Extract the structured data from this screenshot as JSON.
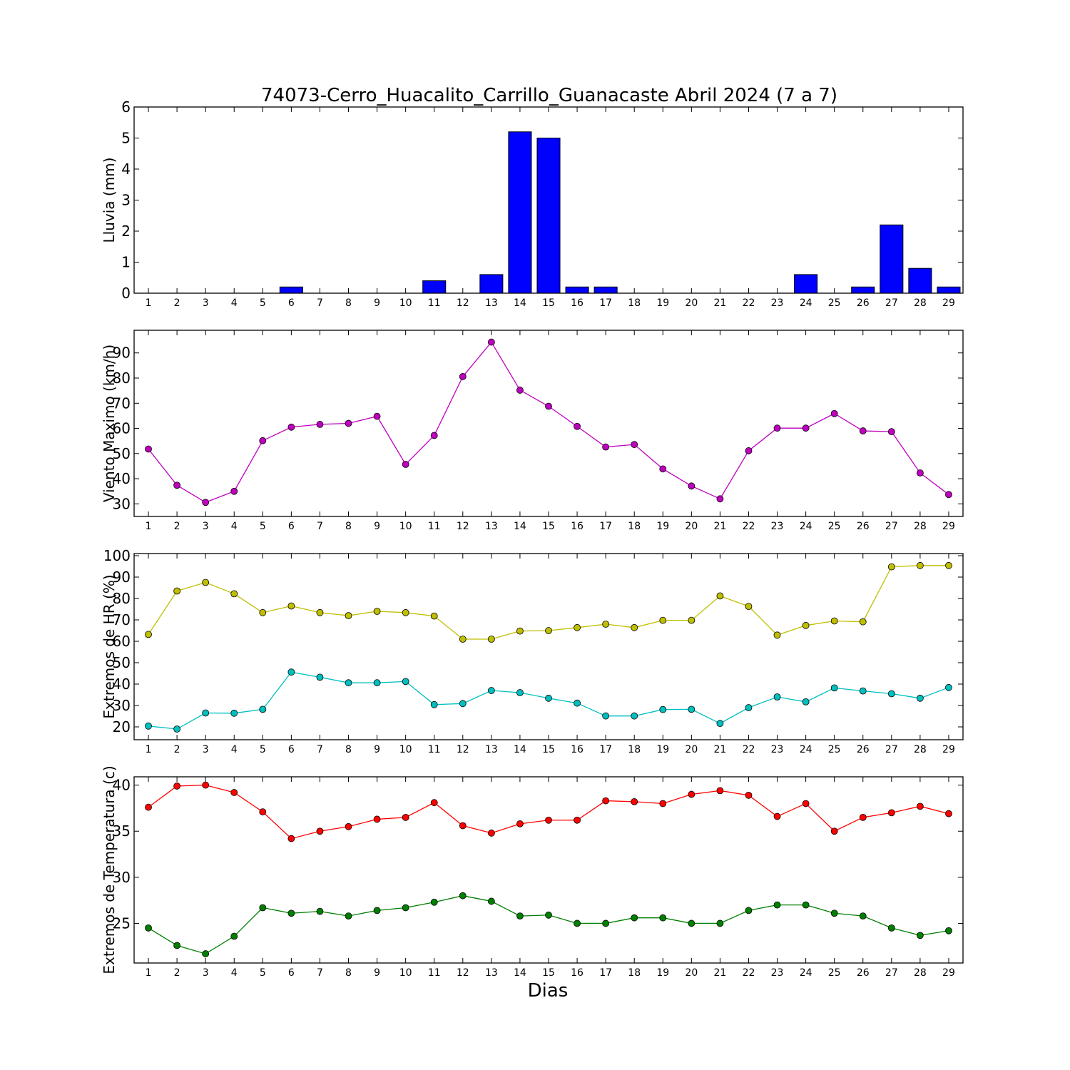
{
  "figure": {
    "title": "74073-Cerro_Huacalito_Carrillo_Guanacaste Abril 2024  (7 a 7)",
    "xlabel": "Dias"
  },
  "chart_data": [
    {
      "type": "bar",
      "ylabel": "Lluvia (mm)",
      "categories": [
        1,
        2,
        3,
        4,
        5,
        6,
        7,
        8,
        9,
        10,
        11,
        12,
        13,
        14,
        15,
        16,
        17,
        18,
        19,
        20,
        21,
        22,
        23,
        24,
        25,
        26,
        27,
        28,
        29
      ],
      "xlim": [
        0.5,
        29.5
      ],
      "ylim": [
        0,
        6
      ],
      "yticks": [
        0,
        1,
        2,
        3,
        4,
        5,
        6
      ],
      "series": [
        {
          "color": "#0000ff",
          "values": [
            0,
            0,
            0,
            0,
            0,
            0.2,
            0,
            0,
            0,
            0,
            0.4,
            0,
            0.6,
            5.2,
            5.0,
            0.2,
            0.2,
            0,
            0,
            0,
            0,
            0,
            0,
            0.6,
            0,
            0.2,
            2.2,
            0.8,
            0.2
          ]
        }
      ]
    },
    {
      "type": "line",
      "ylabel": "Viento Maximo (km/h)",
      "categories": [
        1,
        2,
        3,
        4,
        5,
        6,
        7,
        8,
        9,
        10,
        11,
        12,
        13,
        14,
        15,
        16,
        17,
        18,
        19,
        20,
        21,
        22,
        23,
        24,
        25,
        26,
        27,
        28,
        29
      ],
      "xlim": [
        0.5,
        29.5
      ],
      "ylim": [
        25,
        99
      ],
      "yticks": [
        30,
        40,
        50,
        60,
        70,
        80,
        90
      ],
      "series": [
        {
          "color": "#bf00bf",
          "values": [
            51.8,
            37.4,
            30.6,
            35.0,
            55.1,
            60.5,
            61.6,
            62.0,
            64.8,
            45.7,
            57.2,
            80.6,
            94.3,
            75.2,
            68.8,
            60.8,
            52.6,
            53.6,
            43.9,
            37.1,
            32.0,
            51.1,
            60.1,
            60.1,
            65.9,
            59.0,
            58.7,
            42.3,
            33.7
          ]
        }
      ]
    },
    {
      "type": "line",
      "ylabel": "Extremos de HR (%)",
      "categories": [
        1,
        2,
        3,
        4,
        5,
        6,
        7,
        8,
        9,
        10,
        11,
        12,
        13,
        14,
        15,
        16,
        17,
        18,
        19,
        20,
        21,
        22,
        23,
        24,
        25,
        26,
        27,
        28,
        29
      ],
      "xlim": [
        0.5,
        29.5
      ],
      "ylim": [
        14,
        101
      ],
      "yticks": [
        20,
        30,
        40,
        50,
        60,
        70,
        80,
        90,
        100
      ],
      "series": [
        {
          "color": "#bfbf00",
          "values": [
            63.2,
            83.5,
            87.5,
            82.2,
            73.4,
            76.5,
            73.4,
            72.0,
            74.0,
            73.4,
            71.8,
            61.0,
            61.0,
            64.8,
            65.0,
            66.4,
            68.0,
            66.4,
            69.8,
            69.8,
            81.2,
            76.3,
            62.9,
            67.4,
            69.5,
            69.1,
            94.8,
            95.4,
            95.4
          ]
        },
        {
          "color": "#00bfbf",
          "values": [
            20.4,
            19.0,
            26.5,
            26.4,
            28.2,
            45.6,
            43.2,
            40.6,
            40.6,
            41.2,
            30.4,
            30.9,
            37.0,
            36.0,
            33.4,
            31.1,
            25.1,
            25.1,
            28.1,
            28.2,
            21.6,
            29.0,
            34.0,
            31.7,
            38.2,
            36.8,
            35.5,
            33.4,
            38.4
          ]
        }
      ]
    },
    {
      "type": "line",
      "ylabel": "Extremos de Temperatura (c)",
      "categories": [
        1,
        2,
        3,
        4,
        5,
        6,
        7,
        8,
        9,
        10,
        11,
        12,
        13,
        14,
        15,
        16,
        17,
        18,
        19,
        20,
        21,
        22,
        23,
        24,
        25,
        26,
        27,
        28,
        29
      ],
      "xlim": [
        0.5,
        29.5
      ],
      "ylim": [
        20.7,
        40.9
      ],
      "yticks": [
        25,
        30,
        35,
        40
      ],
      "series": [
        {
          "color": "#ff0000",
          "values": [
            37.6,
            39.9,
            40.0,
            39.2,
            37.1,
            34.2,
            35.0,
            35.5,
            36.3,
            36.5,
            38.1,
            35.6,
            34.8,
            35.8,
            36.2,
            36.2,
            38.3,
            38.2,
            38.0,
            39.0,
            39.4,
            38.9,
            36.6,
            38.0,
            35.0,
            36.5,
            37.0,
            37.7,
            36.9
          ]
        },
        {
          "color": "#007f00",
          "values": [
            24.5,
            22.6,
            21.7,
            23.6,
            26.7,
            26.1,
            26.3,
            25.8,
            26.4,
            26.7,
            27.3,
            28.0,
            27.4,
            25.8,
            25.9,
            25.0,
            25.0,
            25.6,
            25.6,
            25.0,
            25.0,
            26.4,
            27.0,
            27.0,
            26.1,
            25.8,
            24.5,
            23.7,
            24.2
          ]
        }
      ]
    }
  ]
}
